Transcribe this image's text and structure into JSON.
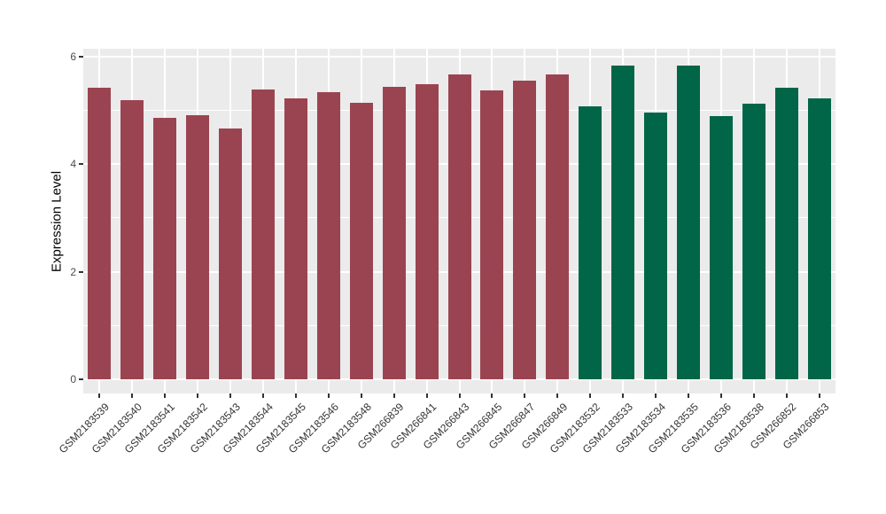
{
  "chart_data": {
    "type": "bar",
    "title": "",
    "xlabel": "",
    "ylabel": "Expression Level",
    "ylim": [
      0,
      6.2
    ],
    "y_major_ticks": [
      0,
      2,
      4,
      6
    ],
    "y_minor_gridlines": [
      1,
      3,
      5
    ],
    "grid": true,
    "legend": "none",
    "bars": [
      {
        "label": "GSM2183539",
        "value": 5.42,
        "color": "#9B4451"
      },
      {
        "label": "GSM2183540",
        "value": 5.19,
        "color": "#9B4451"
      },
      {
        "label": "GSM2183541",
        "value": 4.86,
        "color": "#9B4451"
      },
      {
        "label": "GSM2183542",
        "value": 4.91,
        "color": "#9B4451"
      },
      {
        "label": "GSM2183543",
        "value": 4.66,
        "color": "#9B4451"
      },
      {
        "label": "GSM2183544",
        "value": 5.39,
        "color": "#9B4451"
      },
      {
        "label": "GSM2183545",
        "value": 5.22,
        "color": "#9B4451"
      },
      {
        "label": "GSM2183546",
        "value": 5.34,
        "color": "#9B4451"
      },
      {
        "label": "GSM2183548",
        "value": 5.14,
        "color": "#9B4451"
      },
      {
        "label": "GSM266839",
        "value": 5.44,
        "color": "#9B4451"
      },
      {
        "label": "GSM266841",
        "value": 5.49,
        "color": "#9B4451"
      },
      {
        "label": "GSM266843",
        "value": 5.67,
        "color": "#9B4451"
      },
      {
        "label": "GSM266845",
        "value": 5.38,
        "color": "#9B4451"
      },
      {
        "label": "GSM266847",
        "value": 5.55,
        "color": "#9B4451"
      },
      {
        "label": "GSM266849",
        "value": 5.67,
        "color": "#9B4451"
      },
      {
        "label": "GSM2183532",
        "value": 5.08,
        "color": "#006647"
      },
      {
        "label": "GSM2183533",
        "value": 5.83,
        "color": "#006647"
      },
      {
        "label": "GSM2183534",
        "value": 4.96,
        "color": "#006647"
      },
      {
        "label": "GSM2183535",
        "value": 5.83,
        "color": "#006647"
      },
      {
        "label": "GSM2183536",
        "value": 4.9,
        "color": "#006647"
      },
      {
        "label": "GSM2183538",
        "value": 5.12,
        "color": "#006647"
      },
      {
        "label": "GSM266852",
        "value": 5.43,
        "color": "#006647"
      },
      {
        "label": "GSM266853",
        "value": 5.22,
        "color": "#006647"
      }
    ]
  },
  "colors": {
    "page_bg": "#FFFFFF",
    "panel_bg": "#EBEBEB",
    "gridline": "#FFFFFF",
    "bar_maroon": "#9B4451",
    "bar_green": "#006647",
    "tick_text": "#4D4D4D",
    "axis_title_text": "#000000"
  }
}
